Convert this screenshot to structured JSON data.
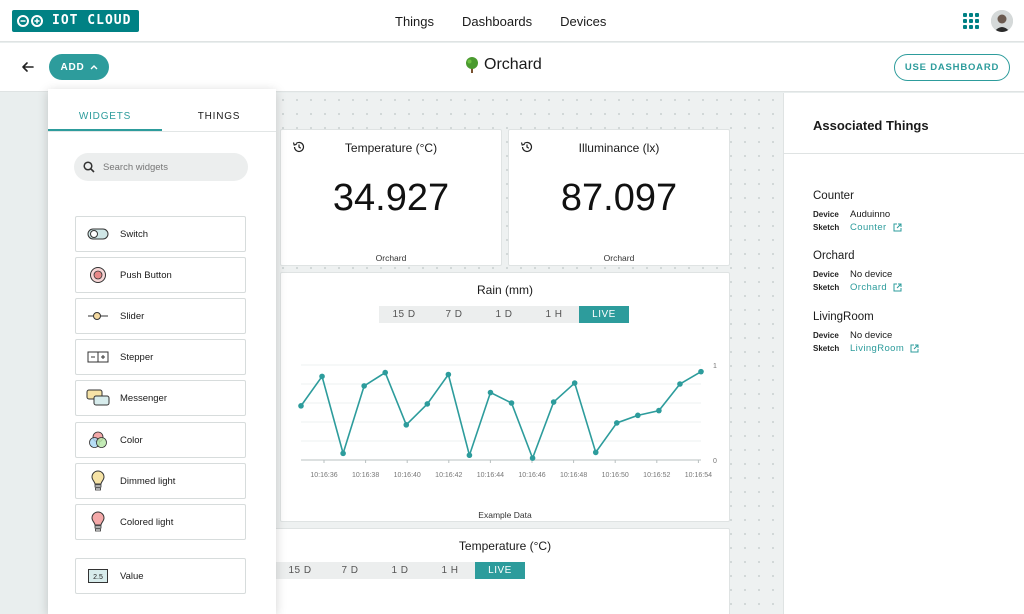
{
  "nav": {
    "logo_text": "IOT CLOUD",
    "links": [
      "Things",
      "Dashboards",
      "Devices"
    ]
  },
  "header": {
    "add_label": "ADD",
    "title": "Orchard",
    "use_dashboard_label": "USE DASHBOARD"
  },
  "colors": {
    "accent": "#2d9c9c",
    "brand": "#008184"
  },
  "widgets": {
    "temperature": {
      "title": "Temperature (°C)",
      "value": "34.927",
      "footer": "Orchard"
    },
    "illuminance": {
      "title": "Illuminance (lx)",
      "value": "87.097",
      "footer": "Orchard"
    },
    "rain": {
      "title": "Rain (mm)",
      "tabs": [
        "15 D",
        "7 D",
        "1 D",
        "1 H",
        "LIVE"
      ],
      "active_tab": "LIVE",
      "footer": "Example Data"
    },
    "temperature_chart": {
      "title": "Temperature (°C)",
      "tabs": [
        "15 D",
        "7 D",
        "1 D",
        "1 H",
        "LIVE"
      ],
      "active_tab": "LIVE"
    }
  },
  "chart_data": {
    "type": "line",
    "title": "Rain (mm)",
    "x_ticks": [
      "10:16:36",
      "10:16:38",
      "10:16:40",
      "10:16:42",
      "10:16:44",
      "10:16:46",
      "10:16:48",
      "10:16:50",
      "10:16:52",
      "10:16:54"
    ],
    "y_ticks": [
      "0",
      "1"
    ],
    "ylim": [
      0,
      1
    ],
    "grid": true,
    "series": [
      {
        "values": [
          0.57,
          0.88,
          0.07,
          0.78,
          0.92,
          0.37,
          0.59,
          0.9,
          0.05,
          0.71,
          0.6,
          0.02,
          0.61,
          0.81,
          0.08,
          0.39,
          0.47,
          0.52,
          0.8,
          0.93
        ]
      }
    ]
  },
  "panel": {
    "tabs": [
      "WIDGETS",
      "THINGS"
    ],
    "search_placeholder": "Search widgets",
    "items": [
      {
        "label": "Switch",
        "icon": "switch-icon"
      },
      {
        "label": "Push Button",
        "icon": "push-button-icon"
      },
      {
        "label": "Slider",
        "icon": "slider-icon"
      },
      {
        "label": "Stepper",
        "icon": "stepper-icon"
      },
      {
        "label": "Messenger",
        "icon": "messenger-icon"
      },
      {
        "label": "Color",
        "icon": "color-icon"
      },
      {
        "label": "Dimmed light",
        "icon": "dimmed-light-icon"
      },
      {
        "label": "Colored light",
        "icon": "colored-light-icon"
      },
      {
        "label": "Value",
        "icon": "value-icon",
        "icon_text": "2.5"
      }
    ]
  },
  "sidebar": {
    "title": "Associated Things",
    "device_key": "Device",
    "sketch_key": "Sketch",
    "things": [
      {
        "name": "Counter",
        "device": "Auduinno",
        "sketch": "Counter"
      },
      {
        "name": "Orchard",
        "device": "No device",
        "sketch": "Orchard"
      },
      {
        "name": "LivingRoom",
        "device": "No device",
        "sketch": "LivingRoom"
      }
    ]
  }
}
